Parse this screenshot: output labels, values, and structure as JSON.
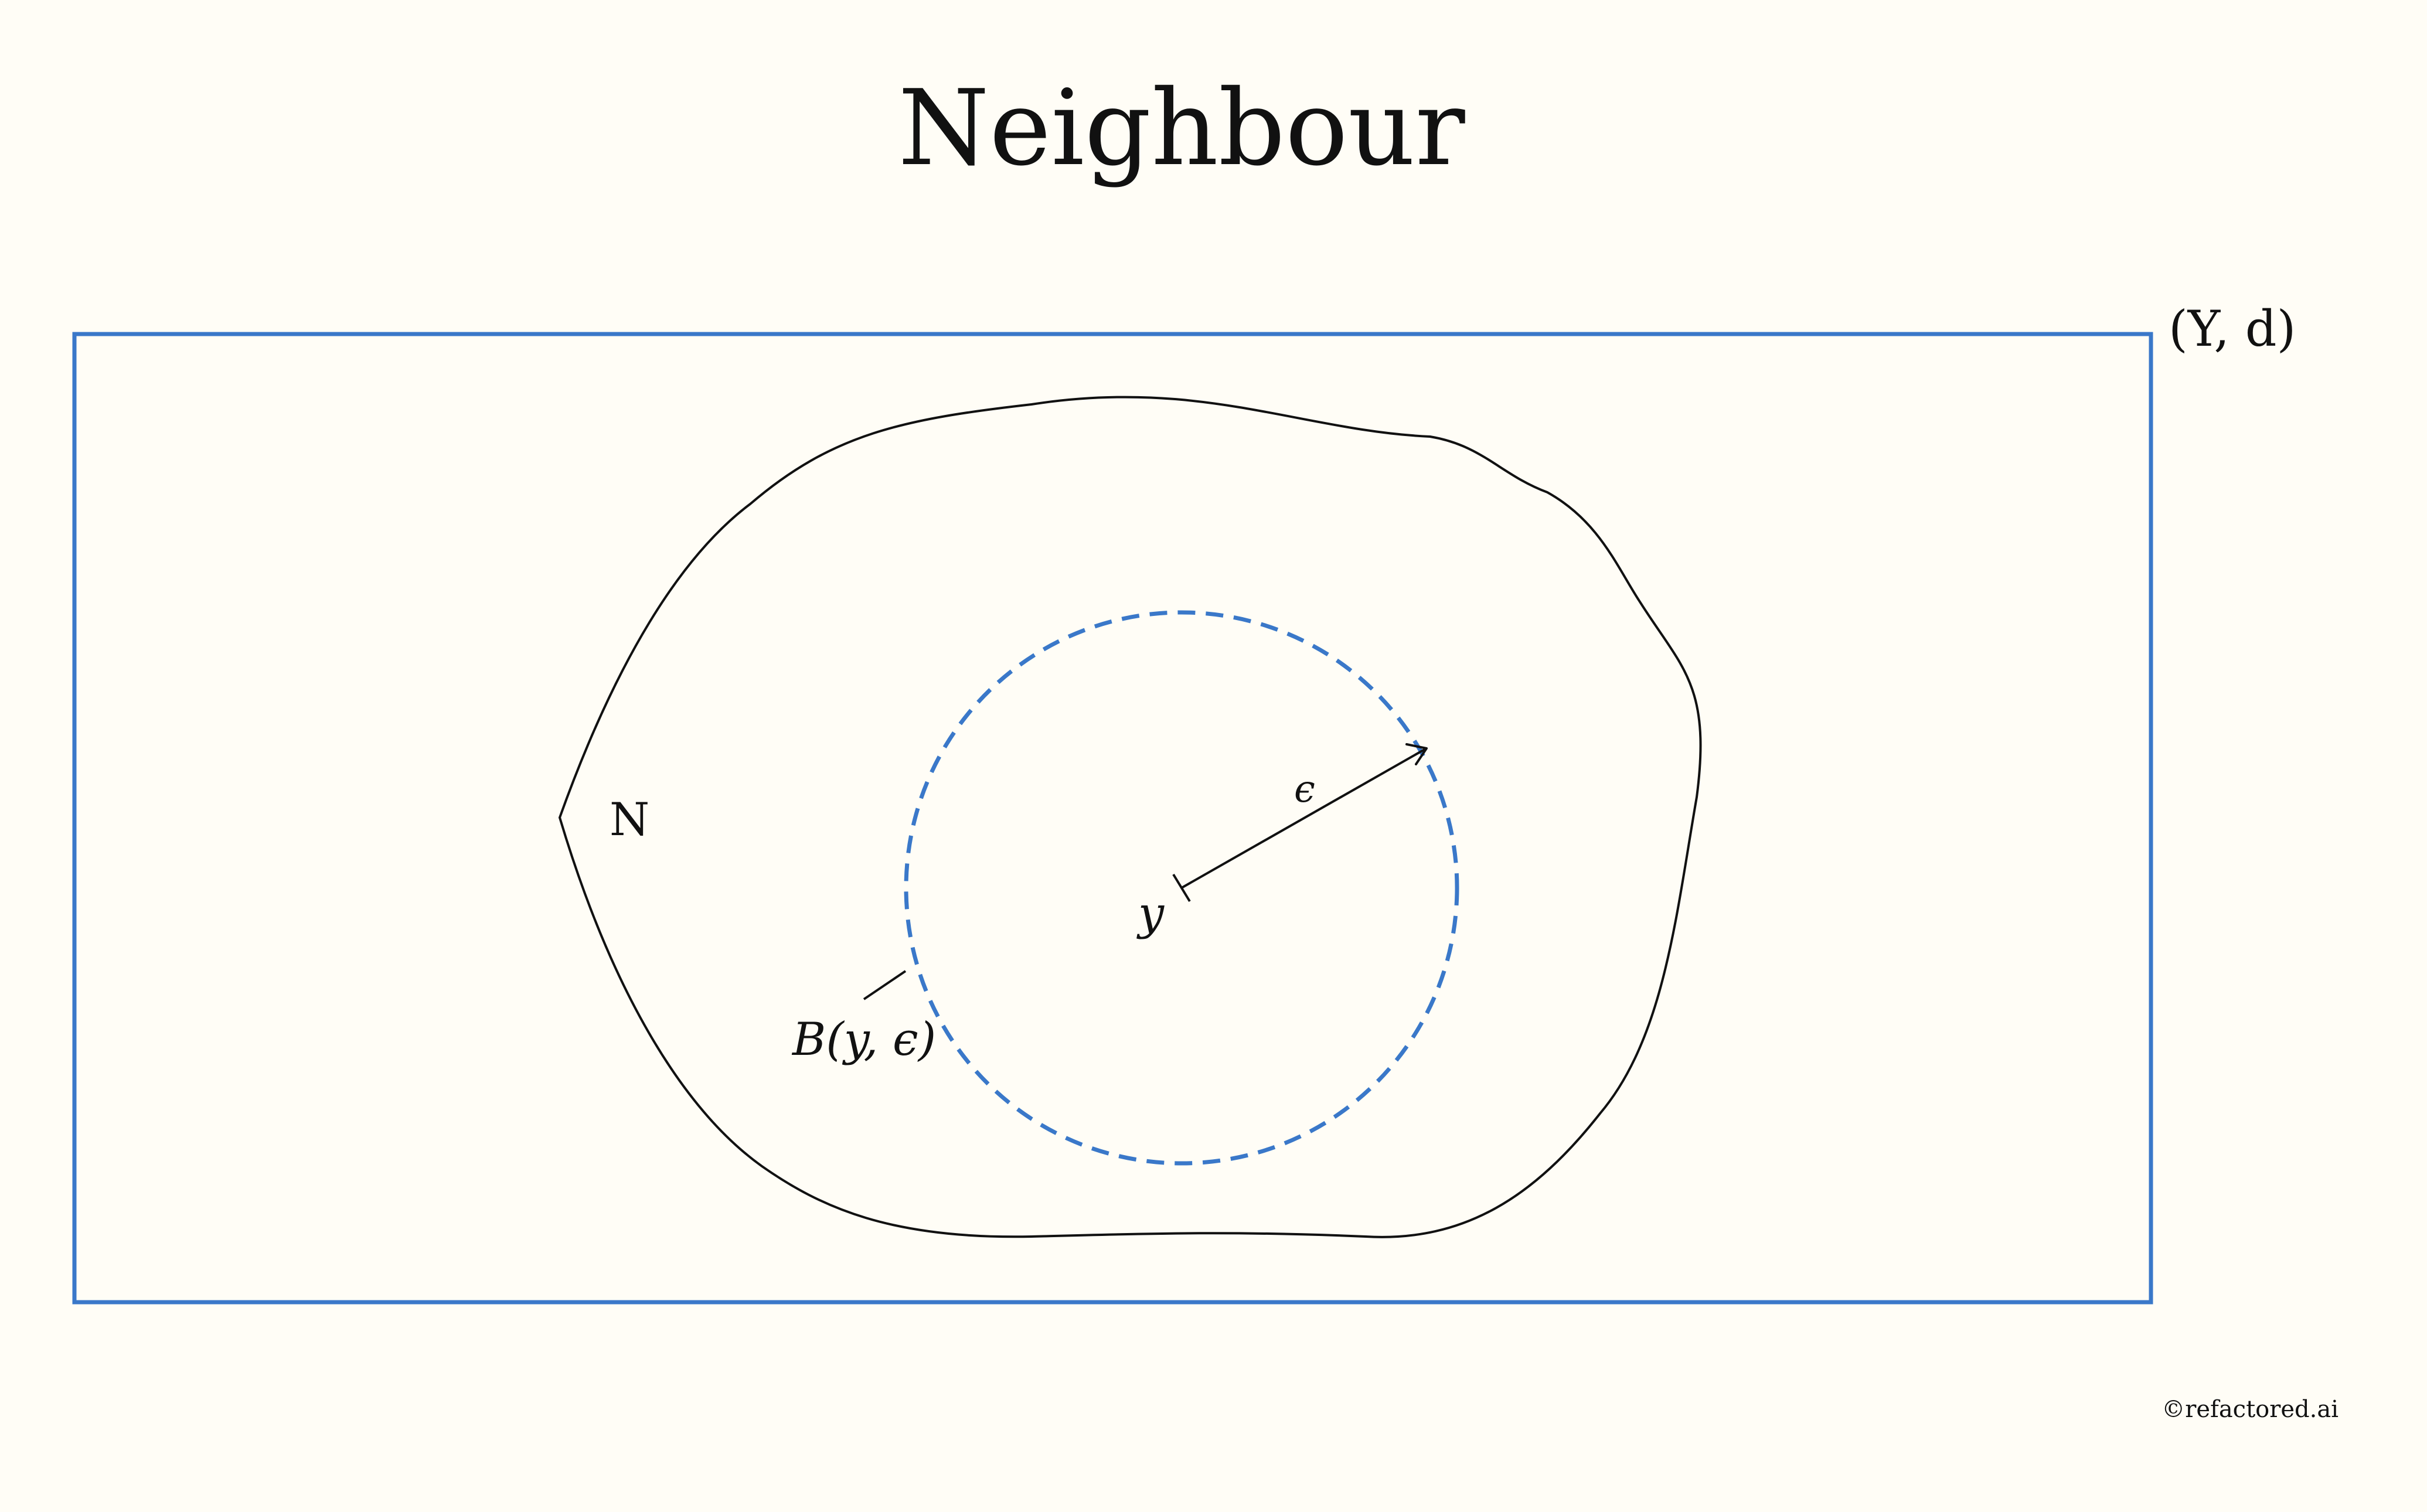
{
  "title": "Neighbour",
  "space_label": "(Y, d)",
  "set_label": "N",
  "point_label": "y",
  "radius_label": "ϵ",
  "ball_label": "B(y, ϵ)",
  "watermark": "©refactored.ai",
  "colors": {
    "background": "#fffdf6",
    "accent_blue": "#3a78c9",
    "ink": "#111111"
  }
}
